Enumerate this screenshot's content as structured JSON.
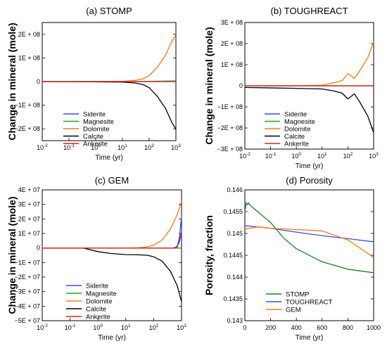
{
  "chart_data": [
    {
      "type": "line",
      "title": "(a) STOMP",
      "xlabel": "Time (yr)",
      "ylabel": "Change in mineral (mole)",
      "x_scale": "log",
      "xlim": [
        0.01,
        1000
      ],
      "x_ticks": [
        "10-2",
        "10-1",
        "100",
        "101",
        "102",
        "103"
      ],
      "ylim": [
        -250000000,
        250000000
      ],
      "y_ticks": [
        {
          "value": 200000000,
          "label": "2E + 08"
        },
        {
          "value": 100000000,
          "label": "1E + 08"
        },
        {
          "value": 0,
          "label": "0"
        },
        {
          "value": -100000000,
          "label": "−1E + 08"
        },
        {
          "value": -200000000,
          "label": "−2E + 08"
        }
      ],
      "legend": "bottom-left",
      "series": [
        {
          "name": "Siderite",
          "color": "#3b4cf5",
          "x": [
            0.01,
            1,
            10,
            100,
            1000
          ],
          "y": [
            0,
            0,
            0,
            0,
            0
          ]
        },
        {
          "name": "Magnesite",
          "color": "#1aa62a",
          "x": [
            0.01,
            1,
            10,
            100,
            1000
          ],
          "y": [
            0,
            0,
            0,
            1000000,
            3000000
          ]
        },
        {
          "name": "Dolomite",
          "color": "#f57a18",
          "x": [
            0.01,
            1,
            10,
            30,
            60,
            100,
            200,
            400,
            700,
            1000
          ],
          "y": [
            0,
            0,
            1000000,
            5000000,
            12000000,
            25000000,
            60000000,
            110000000,
            170000000,
            198000000
          ]
        },
        {
          "name": "Calcite",
          "color": "#000000",
          "x": [
            0.01,
            1,
            10,
            30,
            60,
            100,
            200,
            400,
            700,
            1000
          ],
          "y": [
            0,
            -1000000,
            -2000000,
            -6000000,
            -13000000,
            -26000000,
            -62000000,
            -112000000,
            -172000000,
            -202000000
          ]
        },
        {
          "name": "Ankerite",
          "color": "#e0201c",
          "x": [
            0.01,
            1,
            10,
            100,
            1000
          ],
          "y": [
            0,
            0,
            0,
            0,
            0
          ]
        }
      ]
    },
    {
      "type": "line",
      "title": "(b) TOUGHREACT",
      "xlabel": "Time (yr)",
      "ylabel": "Change in mineral (mole)",
      "x_scale": "log",
      "xlim": [
        0.01,
        1000
      ],
      "x_ticks": [
        "10-2",
        "10-1",
        "100",
        "101",
        "102",
        "103"
      ],
      "ylim": [
        -300000000,
        300000000
      ],
      "y_ticks": [
        {
          "value": 300000000,
          "label": "3E + 08"
        },
        {
          "value": 200000000,
          "label": "2E + 08"
        },
        {
          "value": 100000000,
          "label": "1E + 08"
        },
        {
          "value": 0,
          "label": "0"
        },
        {
          "value": -100000000,
          "label": "−1E + 08"
        },
        {
          "value": -200000000,
          "label": "−2E + 08"
        },
        {
          "value": -300000000,
          "label": "−3E + 08"
        }
      ],
      "legend": "bottom-right",
      "series": [
        {
          "name": "Siderite",
          "color": "#3b4cf5",
          "x": [
            0.01,
            1,
            10,
            100,
            1000
          ],
          "y": [
            0,
            0,
            0,
            0,
            0
          ]
        },
        {
          "name": "Magnesite",
          "color": "#1aa62a",
          "x": [
            0.01,
            1,
            10,
            100,
            1000
          ],
          "y": [
            0,
            0,
            0,
            0,
            0
          ]
        },
        {
          "name": "Dolomite",
          "color": "#f57a18",
          "x": [
            0.01,
            1,
            10,
            30,
            60,
            100,
            180,
            300,
            600,
            1000
          ],
          "y": [
            0,
            0,
            3000000,
            15000000,
            25000000,
            58000000,
            35000000,
            75000000,
            135000000,
            210000000
          ]
        },
        {
          "name": "Calcite",
          "color": "#000000",
          "x": [
            0.01,
            1,
            10,
            30,
            60,
            100,
            180,
            300,
            600,
            1000
          ],
          "y": [
            -8000000,
            -12000000,
            -15000000,
            -25000000,
            -35000000,
            -62000000,
            -38000000,
            -80000000,
            -145000000,
            -222000000
          ]
        },
        {
          "name": "Ankerite",
          "color": "#e0201c",
          "x": [
            0.01,
            1,
            10,
            100,
            1000
          ],
          "y": [
            0,
            0,
            0,
            0,
            0
          ]
        }
      ]
    },
    {
      "type": "line",
      "title": "(c) GEM",
      "xlabel": "Time (yr)",
      "ylabel": "Change in mineral (mole)",
      "x_scale": "log",
      "xlim": [
        0.01,
        1000
      ],
      "x_ticks": [
        "10-2",
        "10-1",
        "100",
        "101",
        "102",
        "103"
      ],
      "ylim": [
        -50000000,
        40000000
      ],
      "y_ticks": [
        {
          "value": 40000000,
          "label": "4E + 07"
        },
        {
          "value": 30000000,
          "label": "3E + 07"
        },
        {
          "value": 20000000,
          "label": "2E + 07"
        },
        {
          "value": 10000000,
          "label": "1E + 07"
        },
        {
          "value": 0,
          "label": "0"
        },
        {
          "value": -10000000,
          "label": "−1E + 07"
        },
        {
          "value": -20000000,
          "label": "−2E + 07"
        },
        {
          "value": -30000000,
          "label": "−3E + 07"
        },
        {
          "value": -40000000,
          "label": "−4E + 07"
        },
        {
          "value": -50000000,
          "label": "−5E + 07"
        }
      ],
      "legend": "bottom-right",
      "series": [
        {
          "name": "Siderite",
          "color": "#3b4cf5",
          "x": [
            0.01,
            100,
            500,
            700,
            850,
            1000
          ],
          "y": [
            0,
            0,
            0,
            500000,
            8000000,
            22000000
          ]
        },
        {
          "name": "Magnesite",
          "color": "#1aa62a",
          "x": [
            0.01,
            1,
            10,
            100,
            1000
          ],
          "y": [
            0,
            0,
            0,
            0,
            0
          ]
        },
        {
          "name": "Dolomite",
          "color": "#f57a18",
          "x": [
            0.01,
            10,
            30,
            60,
            100,
            200,
            400,
            700,
            1000
          ],
          "y": [
            0,
            0,
            200000,
            800000,
            2000000,
            5500000,
            13000000,
            23000000,
            32000000
          ]
        },
        {
          "name": "Calcite",
          "color": "#000000",
          "x": [
            0.01,
            0.3,
            1,
            3,
            10,
            30,
            60,
            100,
            200,
            400,
            700,
            1000
          ],
          "y": [
            0,
            0,
            -2500000,
            -3800000,
            -4500000,
            -4700000,
            -5000000,
            -6000000,
            -9000000,
            -16000000,
            -26000000,
            -37000000
          ]
        },
        {
          "name": "Ankerite",
          "color": "#e0201c",
          "x": [
            0.01,
            100,
            600,
            800,
            1000
          ],
          "y": [
            0,
            0,
            0,
            3000000,
            10000000
          ]
        },
        {
          "name": "",
          "color": "#7b2fbe",
          "x": [
            500,
            700,
            850,
            1000
          ],
          "y": [
            0,
            1000000,
            5000000,
            12000000
          ]
        }
      ]
    },
    {
      "type": "line",
      "title": "(d) Porosity",
      "xlabel": "Time (yr)",
      "ylabel": "Porosity, fraction",
      "x_scale": "linear",
      "xlim": [
        0,
        1000
      ],
      "x_ticks": [
        "0",
        "200",
        "400",
        "600",
        "800",
        "1000"
      ],
      "ylim": [
        0.143,
        0.146
      ],
      "y_ticks": [
        {
          "value": 0.146,
          "label": "0.146"
        },
        {
          "value": 0.1455,
          "label": "0.1455"
        },
        {
          "value": 0.145,
          "label": "0.145"
        },
        {
          "value": 0.1445,
          "label": "0.1445"
        },
        {
          "value": 0.144,
          "label": "0.144"
        },
        {
          "value": 0.1435,
          "label": "0.1435"
        },
        {
          "value": 0.143,
          "label": "0.143"
        }
      ],
      "legend": "bottom-center",
      "series": [
        {
          "name": "STOMP",
          "color": "#1a7f2a",
          "x": [
            0,
            10,
            20,
            30,
            40,
            100,
            200,
            300,
            400,
            600,
            800,
            1000
          ],
          "y": [
            0.14548,
            0.1457,
            0.14566,
            0.1457,
            0.14565,
            0.1455,
            0.14525,
            0.1449,
            0.14465,
            0.14435,
            0.14418,
            0.1441
          ]
        },
        {
          "name": "TOUGHREACT",
          "color": "#4b48e6",
          "x": [
            0,
            200,
            400,
            600,
            800,
            1000
          ],
          "y": [
            0.14518,
            0.14512,
            0.14503,
            0.14495,
            0.14488,
            0.14481
          ]
        },
        {
          "name": "GEM",
          "color": "#f57a18",
          "x": [
            0,
            100,
            200,
            400,
            600,
            800,
            1000
          ],
          "y": [
            0.1451,
            0.14515,
            0.14512,
            0.14509,
            0.14506,
            0.14485,
            0.14445
          ]
        }
      ]
    }
  ]
}
